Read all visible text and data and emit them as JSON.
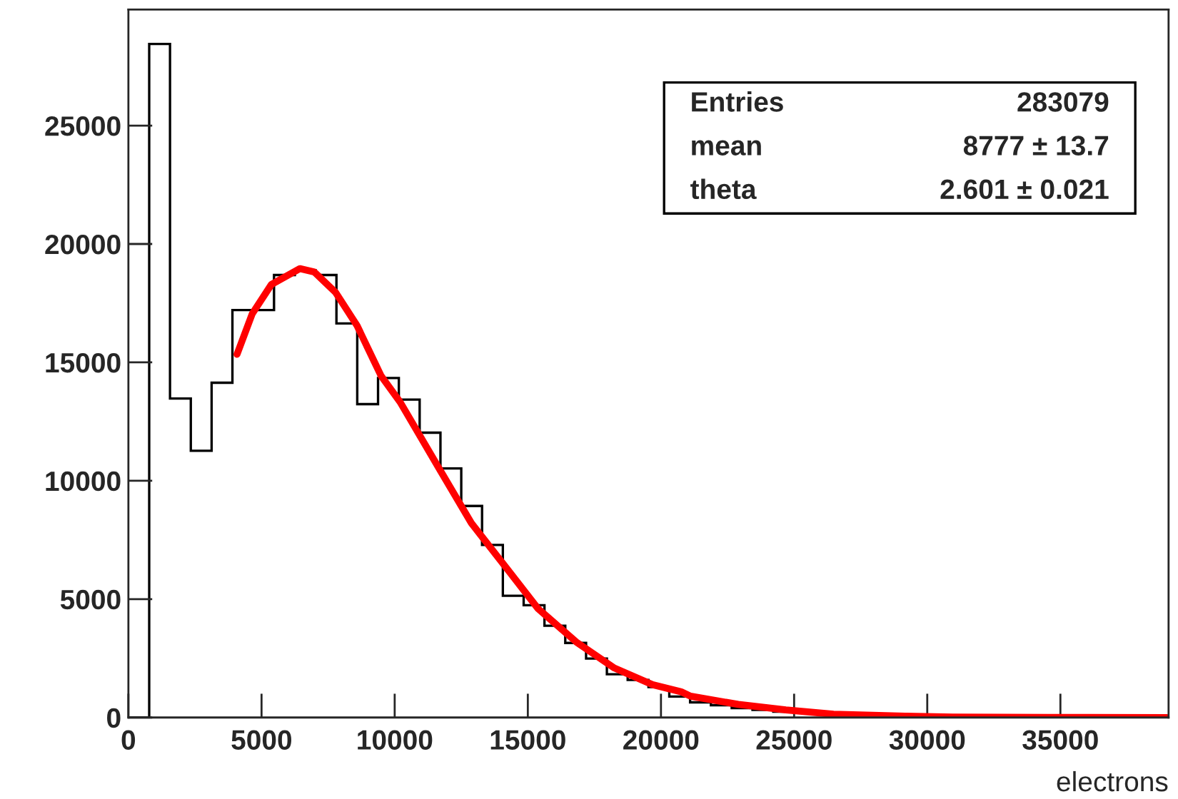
{
  "chart_data": {
    "type": "histogram",
    "xlabel": "electrons",
    "bins": [
      0,
      781.25,
      1562.5,
      2343.75,
      3125,
      3906.25,
      4687.5,
      5468.75,
      6250,
      7031.25,
      7812.5,
      8593.75,
      9375,
      10156.25,
      10937.5,
      11718.75,
      12500,
      13281.25,
      14062.5,
      14843.75,
      15625,
      16406.25,
      17187.5,
      17968.75,
      18750,
      19531.25,
      20312.5,
      21093.75,
      21875,
      22656.25,
      23437.5,
      24218.75,
      25000,
      25781.25,
      26562.5,
      27343.75,
      28125,
      28906.25,
      29687.5,
      30468.75,
      31250,
      32031.25,
      32812.5,
      33593.75,
      34375,
      35156.25,
      35937.5,
      36718.75,
      37500,
      38281.25,
      39062.5
    ],
    "values": [
      0,
      28450,
      13475,
      11265,
      14140,
      17210,
      17210,
      18690,
      18890,
      18690,
      16645,
      13235,
      14340,
      13430,
      12030,
      10520,
      8935,
      7290,
      5140,
      4740,
      3875,
      3150,
      2490,
      1825,
      1585,
      1285,
      885,
      640,
      520,
      400,
      320,
      250,
      190,
      140,
      110,
      80,
      60,
      45,
      35,
      25,
      20,
      15,
      10,
      8,
      6,
      4,
      3,
      2,
      2,
      1
    ],
    "color": "#000000",
    "series": [
      {
        "type": "line",
        "color": "#ff0000",
        "x": [
          4080,
          4650,
          5370,
          6440,
          6980,
          7785,
          8590,
          9485,
          10200,
          11720,
          12880,
          14135,
          15390,
          16820,
          18250,
          19685,
          20760,
          21110,
          22900,
          24690,
          26480,
          29165,
          30955,
          34530,
          39000
        ],
        "values": [
          15340,
          17050,
          18290,
          18960,
          18820,
          17950,
          16545,
          14440,
          13330,
          10420,
          8210,
          6400,
          4590,
          3190,
          2090,
          1385,
          1085,
          900,
          555,
          320,
          140,
          60,
          20,
          5,
          0
        ]
      }
    ],
    "xlim": [
      0,
      39062.5
    ],
    "ylim": [
      0,
      29900
    ],
    "xticks": [
      0,
      5000,
      10000,
      15000,
      20000,
      25000,
      30000,
      35000
    ],
    "yticks": [
      0,
      5000,
      10000,
      15000,
      20000,
      25000
    ],
    "grid": false,
    "legend": false,
    "annotations": [
      "Entries",
      "283079",
      "mean",
      "8777 ± 13.7",
      "theta",
      "2.601 ± 0.021"
    ]
  }
}
